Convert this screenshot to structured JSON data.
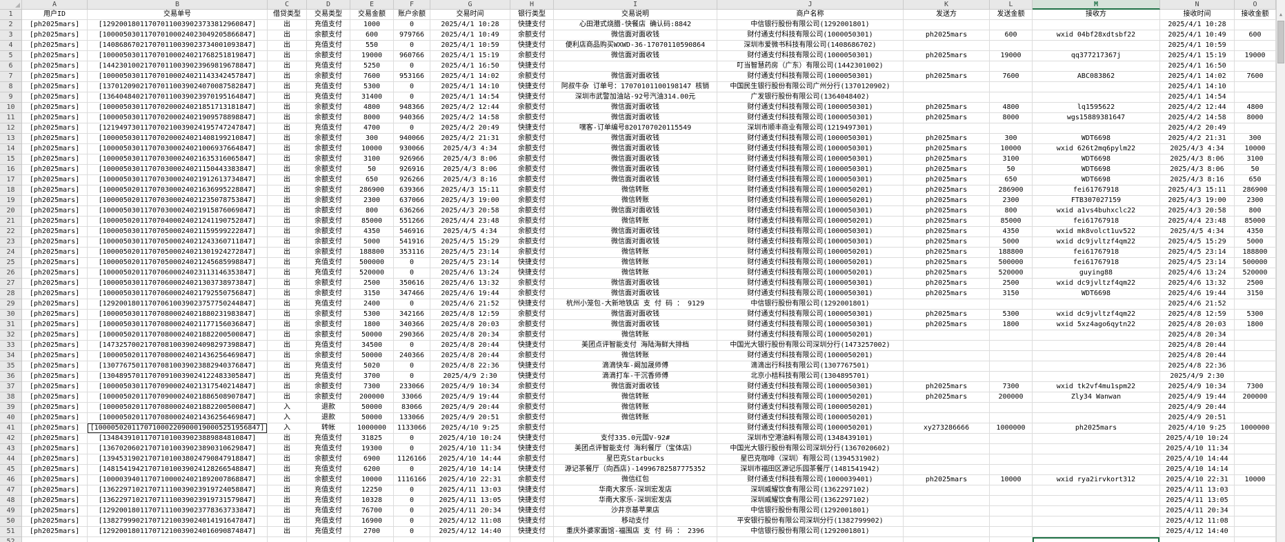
{
  "colors": {
    "accent_green": "#1e7145",
    "header_bg": "#e8e8e8",
    "selected_header_bg": "#d6e3da",
    "grid_line": "#dcdcdc"
  },
  "icons": {
    "scroll_up": "▲"
  },
  "sheet": {
    "column_letters": [
      "A",
      "B",
      "C",
      "D",
      "E",
      "F",
      "G",
      "H",
      "I",
      "J",
      "K",
      "L",
      "M",
      "N",
      "O"
    ],
    "selected_column": "M",
    "active_cell": "M52",
    "boxed_cell": "B41",
    "headers": [
      "用户ID",
      "交易单号",
      "借贷类型",
      "交易类型",
      "交易金额",
      "账户余额",
      "交易时间",
      "银行类型",
      "交易说明",
      "商户名称",
      "发送方",
      "发送金额",
      "接收方",
      "接收时间",
      "接收金额"
    ],
    "rows": [
      [
        "[ph2025mars]",
        "[129200180117070110039023733812960847]",
        "出",
        "充值支付",
        "1000",
        "0",
        "2025/4/1 10:28",
        "快捷支付",
        "心田港式烧腊-快餐店 确认码:8842",
        "中信银行股份有限公司(1292001801)",
        "",
        "",
        "",
        "2025/4/1 10:28",
        ""
      ],
      [
        "[ph2025mars]",
        "[100005030117070100024023049205866847]",
        "出",
        "余额支付",
        "600",
        "979766",
        "2025/4/1 10:49",
        "余额支付",
        "微信面对面收钱",
        "财付通支付科技有限公司(1000050301)",
        "ph2025mars",
        "600",
        "wxid 04bf28xdtsbf22",
        "2025/4/1 10:49",
        "600"
      ],
      [
        "[ph2025mars]",
        "[140868670217070110039023734001093847]",
        "出",
        "充值支付",
        "550",
        "0",
        "2025/4/1 10:59",
        "快捷支付",
        "便利店商品购买WXWD-36-17070110590864",
        "深圳市爱微书科技有限公司(1408686702)",
        "",
        "",
        "",
        "2025/4/1 10:59",
        ""
      ],
      [
        "[ph2025mars]",
        "[100005030117070100024021768251819847]",
        "出",
        "余额支付",
        "19000",
        "960766",
        "2025/4/1 15:19",
        "余额支付",
        "微信面对面收钱",
        "财付通支付科技有限公司(1000050301)",
        "ph2025mars",
        "19000",
        "qq377217367j",
        "2025/4/1 15:19",
        "19000"
      ],
      [
        "[ph2025mars]",
        "[144230100217070110039023969819678847]",
        "出",
        "充值支付",
        "5250",
        "0",
        "2025/4/1 16:50",
        "快捷支付",
        "",
        "叮当智慧药房（广东）有限公司(1442301002)",
        "",
        "",
        "",
        "2025/4/1 16:50",
        ""
      ],
      [
        "[ph2025mars]",
        "[100005030117070100024021143342457847]",
        "出",
        "余额支付",
        "7600",
        "953166",
        "2025/4/1 14:02",
        "余额支付",
        "微信面对面收钱",
        "财付通支付科技有限公司(1000050301)",
        "ph2025mars",
        "7600",
        "ABC083862",
        "2025/4/1 14:02",
        "7600"
      ],
      [
        "[ph2025mars]",
        "[137012090217070110039024070087582847]",
        "出",
        "充值支付",
        "5300",
        "0",
        "2025/4/1 14:10",
        "快捷支付",
        "阿叔牛杂 订单号：17070101100198147 核销",
        "中国民生银行股份有限公司广州分行(1370120902)",
        "",
        "",
        "",
        "2025/4/1 14:10",
        ""
      ],
      [
        "[ph2025mars]",
        "[136404840217070110039023970195164847]",
        "出",
        "充值支付",
        "31400",
        "0",
        "2025/4/1 14:54",
        "快捷支付",
        "深圳市武警加油站-92号汽油314.00元",
        "广发银行股份有限公司(1364048402)",
        "",
        "",
        "",
        "2025/4/1 14:54",
        ""
      ],
      [
        "[ph2025mars]",
        "[100005030117070200024021851713181847]",
        "出",
        "余额支付",
        "4800",
        "948366",
        "2025/4/2 12:44",
        "余额支付",
        "微信面对面收钱",
        "财付通支付科技有限公司(1000050301)",
        "ph2025mars",
        "4800",
        "lq1595622",
        "2025/4/2 12:44",
        "4800"
      ],
      [
        "[ph2025mars]",
        "[100005030117070200024021909578898847]",
        "出",
        "余额支付",
        "8000",
        "940366",
        "2025/4/2 14:58",
        "余额支付",
        "微信面对面收钱",
        "财付通支付科技有限公司(1000050301)",
        "ph2025mars",
        "8000",
        "wgs15889381647",
        "2025/4/2 14:58",
        "8000"
      ],
      [
        "[ph2025mars]",
        "[121949730117070210039024195747247847]",
        "出",
        "充值支付",
        "4700",
        "0",
        "2025/4/2 20:49",
        "快捷支付",
        "嘿客-订单编号8201707020115549",
        "深圳市顺丰商业有限公司(1219497301)",
        "",
        "",
        "",
        "2025/4/2 20:49",
        ""
      ],
      [
        "[ph2025mars]",
        "[100005030117070200024021408199210847]",
        "出",
        "余额支付",
        "300",
        "940066",
        "2025/4/2 21:31",
        "余额支付",
        "微信面对面收钱",
        "财付通支付科技有限公司(1000050301)",
        "ph2025mars",
        "300",
        "WDT6698",
        "2025/4/2 21:31",
        "300"
      ],
      [
        "[ph2025mars]",
        "[100005030117070300024021006937664847]",
        "出",
        "余额支付",
        "10000",
        "930066",
        "2025/4/3 4:34",
        "余额支付",
        "微信面对面收钱",
        "财付通支付科技有限公司(1000050301)",
        "ph2025mars",
        "10000",
        "wxid 626t2mq6pylm22",
        "2025/4/3 4:34",
        "10000"
      ],
      [
        "[ph2025mars]",
        "[100005030117070300024021635316065847]",
        "出",
        "余额支付",
        "3100",
        "926966",
        "2025/4/3 8:06",
        "余额支付",
        "微信面对面收钱",
        "财付通支付科技有限公司(1000050301)",
        "ph2025mars",
        "3100",
        "WDT6698",
        "2025/4/3 8:06",
        "3100"
      ],
      [
        "[ph2025mars]",
        "[100005030117070300024021150443383847]",
        "出",
        "余额支付",
        "50",
        "926916",
        "2025/4/3 8:06",
        "余额支付",
        "微信面对面收钱",
        "财付通支付科技有限公司(1000050301)",
        "ph2025mars",
        "50",
        "WDT6698",
        "2025/4/3 8:06",
        "50"
      ],
      [
        "[ph2025mars]",
        "[100005030117070300024021912613734847]",
        "出",
        "余额支付",
        "650",
        "926266",
        "2025/4/3 8:16",
        "余额支付",
        "微信面对面收钱",
        "财付通支付科技有限公司(1000050301)",
        "ph2025mars",
        "650",
        "WDT6698",
        "2025/4/3 8:16",
        "650"
      ],
      [
        "[ph2025mars]",
        "[100005020117070300024021636995228847]",
        "出",
        "余额支付",
        "286900",
        "639366",
        "2025/4/3 15:11",
        "余额支付",
        "微信转账",
        "财付通支付科技有限公司(1000050201)",
        "ph2025mars",
        "286900",
        "fei61767918",
        "2025/4/3 15:11",
        "286900"
      ],
      [
        "[ph2025mars]",
        "[100005020117070300024021235078753847]",
        "出",
        "余额支付",
        "2300",
        "637066",
        "2025/4/3 19:00",
        "余额支付",
        "微信转账",
        "财付通支付科技有限公司(1000050201)",
        "ph2025mars",
        "2300",
        "FTB307027159",
        "2025/4/3 19:00",
        "2300"
      ],
      [
        "[ph2025mars]",
        "[100005030117070300024021915876069847]",
        "出",
        "余额支付",
        "800",
        "636266",
        "2025/4/3 20:58",
        "余额支付",
        "微信面对面收钱",
        "财付通支付科技有限公司(1000050301)",
        "ph2025mars",
        "800",
        "wxid a1vs4buhxclc22",
        "2025/4/3 20:58",
        "800"
      ],
      [
        "[ph2025mars]",
        "[100005020117070400024021241190752847]",
        "出",
        "余额支付",
        "85000",
        "551266",
        "2025/4/4 23:48",
        "余额支付",
        "微信转账",
        "财付通支付科技有限公司(1000050201)",
        "ph2025mars",
        "85000",
        "fei61767918",
        "2025/4/4 23:48",
        "85000"
      ],
      [
        "[ph2025mars]",
        "[100005030117070500024021159599222847]",
        "出",
        "余额支付",
        "4350",
        "546916",
        "2025/4/5 4:34",
        "余额支付",
        "微信面对面收钱",
        "财付通支付科技有限公司(1000050301)",
        "ph2025mars",
        "4350",
        "wxid mk8volct1uv522",
        "2025/4/5 4:34",
        "4350"
      ],
      [
        "[ph2025mars]",
        "[100005030117070500024021243360711847]",
        "出",
        "余额支付",
        "5000",
        "541916",
        "2025/4/5 15:29",
        "余额支付",
        "微信面对面收钱",
        "财付通支付科技有限公司(1000050301)",
        "ph2025mars",
        "5000",
        "wxid dc9jvltzf4qm22",
        "2025/4/5 15:29",
        "5000"
      ],
      [
        "[ph2025mars]",
        "[100005020117070500024021301924272847]",
        "出",
        "余额支付",
        "188800",
        "353116",
        "2025/4/5 23:14",
        "余额支付",
        "微信转账",
        "财付通支付科技有限公司(1000050201)",
        "ph2025mars",
        "188800",
        "fei61767918",
        "2025/4/5 23:14",
        "188800"
      ],
      [
        "[ph2025mars]",
        "[100005020117070500024021245685998847]",
        "出",
        "充值支付",
        "500000",
        "0",
        "2025/4/5 23:14",
        "快捷支付",
        "微信转账",
        "财付通支付科技有限公司(1000050201)",
        "ph2025mars",
        "500000",
        "fei61767918",
        "2025/4/5 23:14",
        "500000"
      ],
      [
        "[ph2025mars]",
        "[100005020117070600024023113146353847]",
        "出",
        "充值支付",
        "520000",
        "0",
        "2025/4/6 13:24",
        "快捷支付",
        "微信转账",
        "财付通支付科技有限公司(1000050201)",
        "ph2025mars",
        "520000",
        "guying88",
        "2025/4/6 13:24",
        "520000"
      ],
      [
        "[ph2025mars]",
        "[100005030117070600024021303738973847]",
        "出",
        "余额支付",
        "2500",
        "350616",
        "2025/4/6 13:32",
        "余额支付",
        "微信面对面收钱",
        "财付通支付科技有限公司(1000050301)",
        "ph2025mars",
        "2500",
        "wxid dc9jvltzf4qm22",
        "2025/4/6 13:32",
        "2500"
      ],
      [
        "[ph2025mars]",
        "[100005030117070600024021792550756847]",
        "出",
        "余额支付",
        "3150",
        "347466",
        "2025/4/6 19:44",
        "余额支付",
        "微信面对面收钱",
        "财付通支付科技有限公司(1000050301)",
        "ph2025mars",
        "3150",
        "WDT6698",
        "2025/4/6 19:44",
        "3150"
      ],
      [
        "[ph2025mars]",
        "[129200180117070610039023757750244847]",
        "出",
        "充值支付",
        "2400",
        "0",
        "2025/4/6 21:52",
        "快捷支付",
        "杭州小笼包-大新地铁店 支 付 码 ： 9129",
        "中信银行股份有限公司(1292001801)",
        "",
        "",
        "",
        "2025/4/6 21:52",
        ""
      ],
      [
        "[ph2025mars]",
        "[100005030117070800024021880231983847]",
        "出",
        "余额支付",
        "5300",
        "342166",
        "2025/4/8 12:59",
        "余额支付",
        "微信面对面收钱",
        "财付通支付科技有限公司(1000050301)",
        "ph2025mars",
        "5300",
        "wxid dc9jvltzf4qm22",
        "2025/4/8 12:59",
        "5300"
      ],
      [
        "[ph2025mars]",
        "[100005030117070800024021177156036847]",
        "出",
        "余额支付",
        "1800",
        "340366",
        "2025/4/8 20:03",
        "余额支付",
        "微信面对面收钱",
        "财付通支付科技有限公司(1000050301)",
        "ph2025mars",
        "1800",
        "wxid 5xz4ago6qytn22",
        "2025/4/8 20:03",
        "1800"
      ],
      [
        "[ph2025mars]",
        "[100005020117070800024021882200500847]",
        "出",
        "余额支付",
        "50000",
        "290366",
        "2025/4/8 20:34",
        "余额支付",
        "微信转账",
        "财付通支付科技有限公司(1000050201)",
        "",
        "",
        "",
        "2025/4/8 20:34",
        ""
      ],
      [
        "[ph2025mars]",
        "[147325700217070810039024098297398847]",
        "出",
        "充值支付",
        "34500",
        "0",
        "2025/4/8 20:44",
        "快捷支付",
        "美团点评智能支付 海陆海鲜大排档",
        "中国光大银行股份有限公司深圳分行(1473257002)",
        "",
        "",
        "",
        "2025/4/8 20:44",
        ""
      ],
      [
        "[ph2025mars]",
        "[100005020117070800024021436256469847]",
        "出",
        "余额支付",
        "50000",
        "240366",
        "2025/4/8 20:44",
        "余额支付",
        "微信转账",
        "财付通支付科技有限公司(1000050201)",
        "",
        "",
        "",
        "2025/4/8 20:44",
        ""
      ],
      [
        "[ph2025mars]",
        "[130776750117070810039023882940376847]",
        "出",
        "充值支付",
        "5020",
        "0",
        "2025/4/8 22:36",
        "快捷支付",
        "滴滴快车-阚加晟师傅",
        "滴滴出行科技有限公司(1307767501)",
        "",
        "",
        "",
        "2025/4/8 22:36",
        ""
      ],
      [
        "[ph2025mars]",
        "[130489570117070910039024122483305847]",
        "出",
        "充值支付",
        "3700",
        "0",
        "2025/4/9 2:30",
        "快捷支付",
        "滴滴打车-干沉香师傅",
        "北京小桔科技有限公司(1304895701)",
        "",
        "",
        "",
        "2025/4/9 2:30",
        ""
      ],
      [
        "[ph2025mars]",
        "[100005030117070900024021317540214847]",
        "出",
        "余额支付",
        "7300",
        "233066",
        "2025/4/9 10:34",
        "余额支付",
        "微信面对面收钱",
        "财付通支付科技有限公司(1000050301)",
        "ph2025mars",
        "7300",
        "wxid tk2vf4mu1spm22",
        "2025/4/9 10:34",
        "7300"
      ],
      [
        "[ph2025mars]",
        "[100005020117070900024021886508907847]",
        "出",
        "余额支付",
        "200000",
        "33066",
        "2025/4/9 19:44",
        "余额支付",
        "微信转账",
        "财付通支付科技有限公司(1000050201)",
        "ph2025mars",
        "200000",
        "Zly34 Wanwan",
        "2025/4/9 19:44",
        "200000"
      ],
      [
        "[ph2025mars]",
        "[100005020117070800024021882200500847]",
        "入",
        "退款",
        "50000",
        "83066",
        "2025/4/9 20:44",
        "余额支付",
        "微信转账",
        "财付通支付科技有限公司(1000050201)",
        "",
        "",
        "",
        "2025/4/9 20:44",
        ""
      ],
      [
        "[ph2025mars]",
        "[100005020117070800024021436256469847]",
        "入",
        "退款",
        "50000",
        "133066",
        "2025/4/9 20:51",
        "余额支付",
        "微信转账",
        "财付通支付科技有限公司(1000050201)",
        "",
        "",
        "",
        "2025/4/9 20:51",
        ""
      ],
      [
        "[ph2025mars]",
        "[1000050201170710002209000190005251956847]",
        "入",
        "转帐",
        "1000000",
        "1133066",
        "2025/4/10 9:25",
        "余额支付",
        "",
        "财付通支付科技有限公司(1000050201)",
        "xy273286666",
        "1000000",
        "ph2025mars",
        "2025/4/10 9:25",
        "1000000"
      ],
      [
        "[ph2025mars]",
        "[134843910117071010039023889884810847]",
        "出",
        "充值支付",
        "31825",
        "0",
        "2025/4/10 10:24",
        "快捷支付",
        "支付335.0元国V-92#",
        "深圳市空港油料有限公司(1348439101)",
        "",
        "",
        "",
        "2025/4/10 10:24",
        ""
      ],
      [
        "[ph2025mars]",
        "[136702060217071010039023890310629847]",
        "出",
        "充值支付",
        "19300",
        "0",
        "2025/4/10 11:34",
        "快捷支付",
        "美团点评智能支付 海利餐厅（宝体店）",
        "中国光大银行股份有限公司深圳分行(1367020602)",
        "",
        "",
        "",
        "2025/4/10 11:34",
        ""
      ],
      [
        "[ph2025mars]",
        "[139453190217071010038024790847918847]",
        "出",
        "余额支付",
        "6900",
        "1126166",
        "2025/4/10 14:44",
        "余额支付",
        "星巴克Starbucks",
        "星巴克咖啡（深圳）有限公司(1394531902)",
        "",
        "",
        "",
        "2025/4/10 14:44",
        ""
      ],
      [
        "[ph2025mars]",
        "[148154194217071010039024128266548847]",
        "出",
        "充值支付",
        "6200",
        "0",
        "2025/4/10 14:14",
        "快捷支付",
        "源记茶餐厅（向西店)-14996782587775352",
        "深圳市福田区源记乐园茶餐厅(1481541942)",
        "",
        "",
        "",
        "2025/4/10 14:14",
        ""
      ],
      [
        "[ph2025mars]",
        "[100003940117071000024021892007868847]",
        "出",
        "余额支付",
        "10000",
        "1116166",
        "2025/4/10 22:31",
        "余额支付",
        "微信红包",
        "财付通支付科技有限公司(1000039401)",
        "ph2025mars",
        "10000",
        "wxid rya2irvkort312",
        "2025/4/10 22:31",
        "10000"
      ],
      [
        "[ph2025mars]",
        "[136229710217071110039023919724058847]",
        "出",
        "充值支付",
        "12250",
        "0",
        "2025/4/11 13:03",
        "快捷支付",
        "华南大家乐-深圳宏发店",
        "深圳威耀饮食有限公司(1362297102)",
        "",
        "",
        "",
        "2025/4/11 13:03",
        ""
      ],
      [
        "[ph2025mars]",
        "[136229710217071110039023919731579847]",
        "出",
        "充值支付",
        "10328",
        "0",
        "2025/4/11 13:05",
        "快捷支付",
        "华南大家乐-深圳宏发店",
        "深圳威耀饮食有限公司(1362297102)",
        "",
        "",
        "",
        "2025/4/11 13:05",
        ""
      ],
      [
        "[ph2025mars]",
        "[129200180117071110039023778363733847]",
        "出",
        "充值支付",
        "76700",
        "0",
        "2025/4/11 20:34",
        "快捷支付",
        "沙井京基苹果店",
        "中信银行股份有限公司(1292001801)",
        "",
        "",
        "",
        "2025/4/11 20:34",
        ""
      ],
      [
        "[ph2025mars]",
        "[138279990217071210039024014191647847]",
        "出",
        "充值支付",
        "16900",
        "0",
        "2025/4/12 11:08",
        "快捷支付",
        "移动支付",
        "平安银行股份有限公司深圳分行(1382799902)",
        "",
        "",
        "",
        "2025/4/12 11:08",
        ""
      ],
      [
        "[ph2025mars]",
        "[129200180117071210039024016090874847]",
        "出",
        "充值支付",
        "2700",
        "0",
        "2025/4/12 14:40",
        "快捷支付",
        "重庆外婆家面馆-福围店 支 付 码 ： 2396",
        "中信银行股份有限公司(1292001801)",
        "",
        "",
        "",
        "2025/4/12 14:40",
        ""
      ]
    ]
  }
}
